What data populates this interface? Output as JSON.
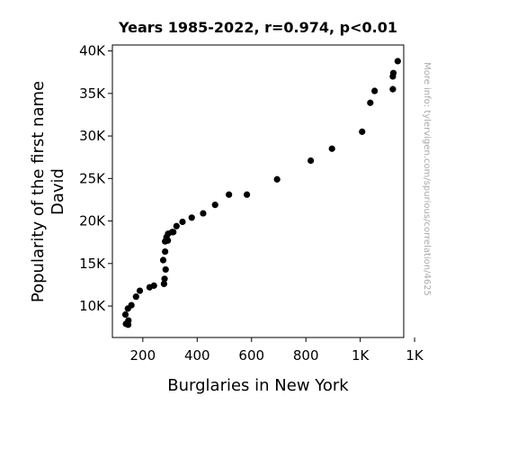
{
  "chart_data": {
    "type": "scatter",
    "title": "Years 1985-2022, r=0.974, p<0.01",
    "xlabel": "Burglaries in New York",
    "ylabel_lines": [
      "Popularity of the first name",
      "David"
    ],
    "watermark": "More info: tylervigen.com/spurious/correlation/4625",
    "xlim": [
      88,
      1160
    ],
    "ylim": [
      6300,
      40700
    ],
    "x_ticks": [
      {
        "value": 200,
        "label": "200"
      },
      {
        "value": 400,
        "label": "400"
      },
      {
        "value": 600,
        "label": "600"
      },
      {
        "value": 800,
        "label": "800"
      },
      {
        "value": 1000,
        "label": "1K"
      },
      {
        "value": 1200,
        "label": "1K"
      }
    ],
    "y_ticks": [
      {
        "value": 10000,
        "label": "10K"
      },
      {
        "value": 15000,
        "label": "15K"
      },
      {
        "value": 20000,
        "label": "20K"
      },
      {
        "value": 25000,
        "label": "25K"
      },
      {
        "value": 30000,
        "label": "30K"
      },
      {
        "value": 35000,
        "label": "35K"
      },
      {
        "value": 40000,
        "label": "40K"
      }
    ],
    "point_color": "#000000",
    "grid": false,
    "points": [
      {
        "x": 1138,
        "y": 38800
      },
      {
        "x": 1122,
        "y": 37400
      },
      {
        "x": 1120,
        "y": 37000
      },
      {
        "x": 1120,
        "y": 35500
      },
      {
        "x": 1053,
        "y": 35300
      },
      {
        "x": 1037,
        "y": 33900
      },
      {
        "x": 1007,
        "y": 30500
      },
      {
        "x": 896,
        "y": 28500
      },
      {
        "x": 818,
        "y": 27100
      },
      {
        "x": 694,
        "y": 24900
      },
      {
        "x": 583,
        "y": 23100
      },
      {
        "x": 517,
        "y": 23100
      },
      {
        "x": 466,
        "y": 21900
      },
      {
        "x": 422,
        "y": 20900
      },
      {
        "x": 380,
        "y": 20400
      },
      {
        "x": 346,
        "y": 19900
      },
      {
        "x": 324,
        "y": 19400
      },
      {
        "x": 312,
        "y": 18700
      },
      {
        "x": 308,
        "y": 18700
      },
      {
        "x": 293,
        "y": 18500
      },
      {
        "x": 287,
        "y": 18100
      },
      {
        "x": 292,
        "y": 17700
      },
      {
        "x": 282,
        "y": 17600
      },
      {
        "x": 282,
        "y": 16400
      },
      {
        "x": 275,
        "y": 15400
      },
      {
        "x": 284,
        "y": 14300
      },
      {
        "x": 280,
        "y": 13200
      },
      {
        "x": 278,
        "y": 12600
      },
      {
        "x": 241,
        "y": 12400
      },
      {
        "x": 225,
        "y": 12200
      },
      {
        "x": 189,
        "y": 11800
      },
      {
        "x": 175,
        "y": 11100
      },
      {
        "x": 158,
        "y": 10100
      },
      {
        "x": 145,
        "y": 9700
      },
      {
        "x": 136,
        "y": 9000
      },
      {
        "x": 147,
        "y": 8300
      },
      {
        "x": 138,
        "y": 7900
      },
      {
        "x": 146,
        "y": 7800
      }
    ]
  }
}
